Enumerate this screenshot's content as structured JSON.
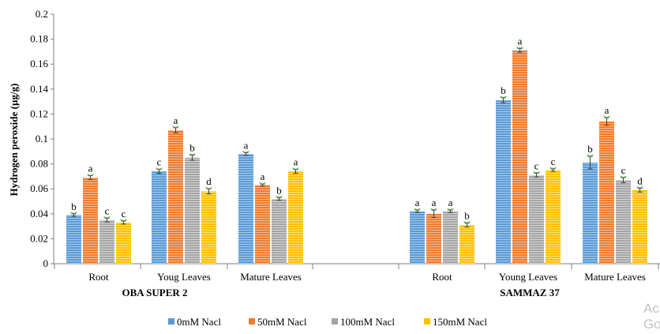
{
  "chart_data": {
    "type": "bar",
    "ylabel": "Hydrogen peroxide (µg/g)",
    "ylim": [
      0,
      0.2
    ],
    "yticks": [
      "0",
      "0.02",
      "0.04",
      "0.06",
      "0.08",
      "0.1",
      "0.12",
      "0.14",
      "0.16",
      "0.18",
      "0.2"
    ],
    "grid": false,
    "legend_position": "bottom",
    "colors": [
      "#5b9bd5",
      "#ed7d31",
      "#a5a5a5",
      "#ffc000"
    ],
    "series": [
      {
        "name": "0mM Nacl"
      },
      {
        "name": "50mM Nacl"
      },
      {
        "name": "100mM Nacl"
      },
      {
        "name": "150mM Nacl"
      }
    ],
    "groups": [
      {
        "name": "OBA SUPER 2",
        "categories": [
          {
            "label": "Root",
            "values": [
              0.039,
              0.069,
              0.035,
              0.033
            ],
            "errors": [
              0.001,
              0.0015,
              0.0015,
              0.0012
            ],
            "letters": [
              "b",
              "a",
              "c",
              "c"
            ]
          },
          {
            "label": "Youg Leaves",
            "values": [
              0.074,
              0.107,
              0.085,
              0.058
            ],
            "errors": [
              0.0015,
              0.002,
              0.002,
              0.002
            ],
            "letters": [
              "c",
              "a",
              "b",
              "d"
            ]
          },
          {
            "label": "Mature Leaves",
            "values": [
              0.088,
              0.063,
              0.052,
              0.074
            ],
            "errors": [
              0.001,
              0.0008,
              0.001,
              0.0015
            ],
            "letters": [
              "a",
              "a",
              "b",
              "a"
            ]
          }
        ]
      },
      {
        "name": "SAMMAZ 37",
        "categories": [
          {
            "label": "Root",
            "values": [
              0.042,
              0.04,
              0.042,
              0.031
            ],
            "errors": [
              0.001,
              0.003,
              0.001,
              0.0015
            ],
            "letters": [
              "a",
              "a",
              "a",
              "b"
            ]
          },
          {
            "label": "Young Leaves",
            "values": [
              0.131,
              0.171,
              0.071,
              0.075
            ],
            "errors": [
              0.002,
              0.0015,
              0.0015,
              0.001
            ],
            "letters": [
              "b",
              "a",
              "c",
              "c"
            ]
          },
          {
            "label": "Mature Leaves",
            "values": [
              0.081,
              0.114,
              0.067,
              0.059
            ],
            "errors": [
              0.005,
              0.003,
              0.002,
              0.0015
            ],
            "letters": [
              "b",
              "a",
              "c",
              "d"
            ]
          }
        ]
      }
    ]
  },
  "watermark": {
    "line1": "Ac",
    "line2": "Go"
  }
}
